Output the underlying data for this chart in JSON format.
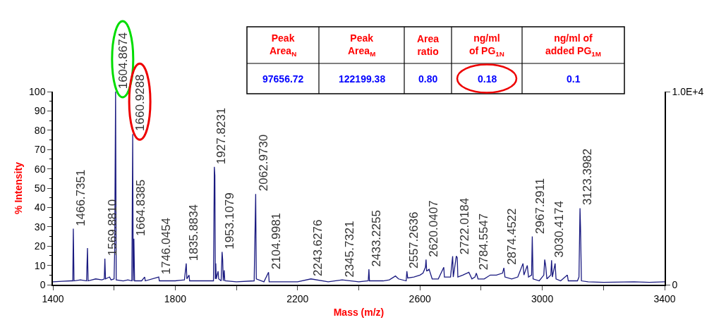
{
  "chart_data": {
    "type": "line",
    "xlabel": "Mass (m/z)",
    "ylabel": "% Intensity",
    "x": [
      1400,
      1430,
      1460,
      1465,
      1466.7,
      1467.5,
      1469,
      1490,
      1510,
      1513,
      1515,
      1540,
      1560,
      1568,
      1569.9,
      1572,
      1585,
      1590,
      1600,
      1602,
      1604.9,
      1607,
      1630,
      1645,
      1658,
      1660.9,
      1662.5,
      1664.8,
      1667,
      1690,
      1700,
      1702,
      1746,
      1748,
      1780,
      1800,
      1830,
      1835.9,
      1838,
      1845,
      1847,
      1900,
      1925,
      1927.8,
      1929.5,
      1931,
      1932.5,
      1934,
      1940,
      1942,
      1950,
      1953.1,
      1955,
      1957,
      1960,
      1962,
      2000,
      2058,
      2061,
      2063,
      2065,
      2090,
      2105,
      2107,
      2200,
      2243.6,
      2300,
      2345.7,
      2400,
      2431,
      2433.2,
      2435,
      2480,
      2500,
      2520,
      2530,
      2555,
      2557.3,
      2560,
      2580,
      2600,
      2610,
      2618,
      2620,
      2622,
      2630,
      2640,
      2660,
      2678,
      2680,
      2700,
      2707,
      2709,
      2719,
      2722,
      2724,
      2740,
      2760,
      2770,
      2780,
      2784.6,
      2790,
      2810,
      2830,
      2850,
      2870,
      2874.5,
      2878,
      2900,
      2920,
      2937,
      2940,
      2951,
      2955,
      2965,
      2967.3,
      2970,
      2990,
      3005,
      3008,
      3011,
      3015,
      3028,
      3030.4,
      3033,
      3042,
      3045,
      3060,
      3082,
      3085,
      3115,
      3120,
      3123.4,
      3125,
      3128,
      3150,
      3200,
      3300,
      3350,
      3400
    ],
    "series": [
      {
        "color": "#1a1a80",
        "values": [
          1.5,
          1.8,
          2,
          2,
          29,
          20,
          2,
          2.5,
          2,
          19,
          2,
          3,
          2.5,
          3,
          13.5,
          3,
          4,
          2.5,
          3,
          18,
          100,
          2.5,
          2,
          2.5,
          2,
          78,
          2,
          23.8,
          2,
          2,
          4,
          2,
          4,
          2,
          2,
          2,
          2.5,
          11,
          3,
          5,
          2,
          2,
          2,
          61,
          56.6,
          3,
          11,
          3,
          7,
          3,
          2,
          17,
          13,
          2,
          7.5,
          2,
          1.5,
          2,
          29,
          47,
          3,
          1.5,
          6.5,
          1.5,
          1.5,
          3,
          1.5,
          2.5,
          1.5,
          2,
          8,
          2,
          2,
          2.5,
          4.5,
          3,
          2,
          7,
          3.5,
          4,
          5,
          6,
          9,
          13,
          7,
          8,
          3,
          3,
          9,
          4,
          4,
          14.8,
          4,
          14.8,
          14,
          4,
          5,
          6.4,
          3,
          4,
          6,
          3,
          3,
          5,
          5,
          6,
          8.7,
          4,
          3,
          4,
          11,
          5,
          10,
          4,
          5,
          25,
          3,
          2,
          5,
          13,
          10,
          3,
          5,
          12.7,
          4,
          11,
          3,
          2,
          5,
          2,
          2,
          4,
          39.6,
          30,
          2,
          1.5,
          1.2,
          1.5,
          1.2,
          1.5
        ]
      }
    ],
    "xlim": [
      1400,
      3400
    ],
    "xticks": [
      1400,
      {
        "value": 1600,
        "label": null
      },
      1800,
      {
        "value": 2000,
        "label": null
      },
      2200,
      {
        "value": 2400,
        "label": null
      },
      2600,
      {
        "value": 2800,
        "label": null
      },
      3000,
      {
        "value": 3200,
        "label": null
      },
      3400
    ],
    "ylim": [
      0,
      100
    ],
    "yticks": [
      0,
      10,
      20,
      30,
      40,
      50,
      60,
      70,
      80,
      90,
      100
    ],
    "y2lim": [
      0,
      10000
    ],
    "y2ticks": [
      0,
      {
        "value": 10000,
        "label": "1.0E+4"
      }
    ],
    "marker": "none",
    "line_style": "solid",
    "annotations": [
      {
        "text": "1466.7351",
        "x": 1466.7,
        "y": 29
      },
      {
        "text": "1569.8810",
        "x": 1569.9,
        "y": 13.5
      },
      {
        "text": "1604.8674",
        "x": 1604.9,
        "y": 100
      },
      {
        "text": "1660.9288",
        "x": 1660.9,
        "y": 78
      },
      {
        "text": "1664.8385",
        "x": 1664.8,
        "y": 23.8
      },
      {
        "text": "1746.0454",
        "x": 1746,
        "y": 4
      },
      {
        "text": "1835.8834",
        "x": 1835.9,
        "y": 11
      },
      {
        "text": "1927.8231",
        "x": 1927.8,
        "y": 61
      },
      {
        "text": "1953.1079",
        "x": 1953.1,
        "y": 17
      },
      {
        "text": "2062.9730",
        "x": 2063,
        "y": 47
      },
      {
        "text": "2104.9981",
        "x": 2105,
        "y": 6.5
      },
      {
        "text": "2243.6276",
        "x": 2243.6,
        "y": 3
      },
      {
        "text": "2345.7321",
        "x": 2345.7,
        "y": 2.5
      },
      {
        "text": "2433.2255",
        "x": 2433.2,
        "y": 8
      },
      {
        "text": "2557.2636",
        "x": 2557.3,
        "y": 7
      },
      {
        "text": "2620.0407",
        "x": 2620,
        "y": 13
      },
      {
        "text": "2722.0184",
        "x": 2722,
        "y": 14
      },
      {
        "text": "2784.5547",
        "x": 2784.6,
        "y": 6
      },
      {
        "text": "2874.4522",
        "x": 2874.5,
        "y": 8.7
      },
      {
        "text": "2967.2911",
        "x": 2967.3,
        "y": 25
      },
      {
        "text": "3030.4174",
        "x": 3030.4,
        "y": 12.7
      },
      {
        "text": "3123.3982",
        "x": 3123.4,
        "y": 39.6
      },
      "Peak\nArea$_{N}$",
      "Peak\nArea$_{M}$",
      "Area\nratio",
      "ng/ml\nof PG$_{1N}$",
      "ng/ml of\nadded PG$_{1M}$",
      "97656.72",
      "122199.38",
      "0.80",
      "0.18",
      "0.1"
    ]
  }
}
